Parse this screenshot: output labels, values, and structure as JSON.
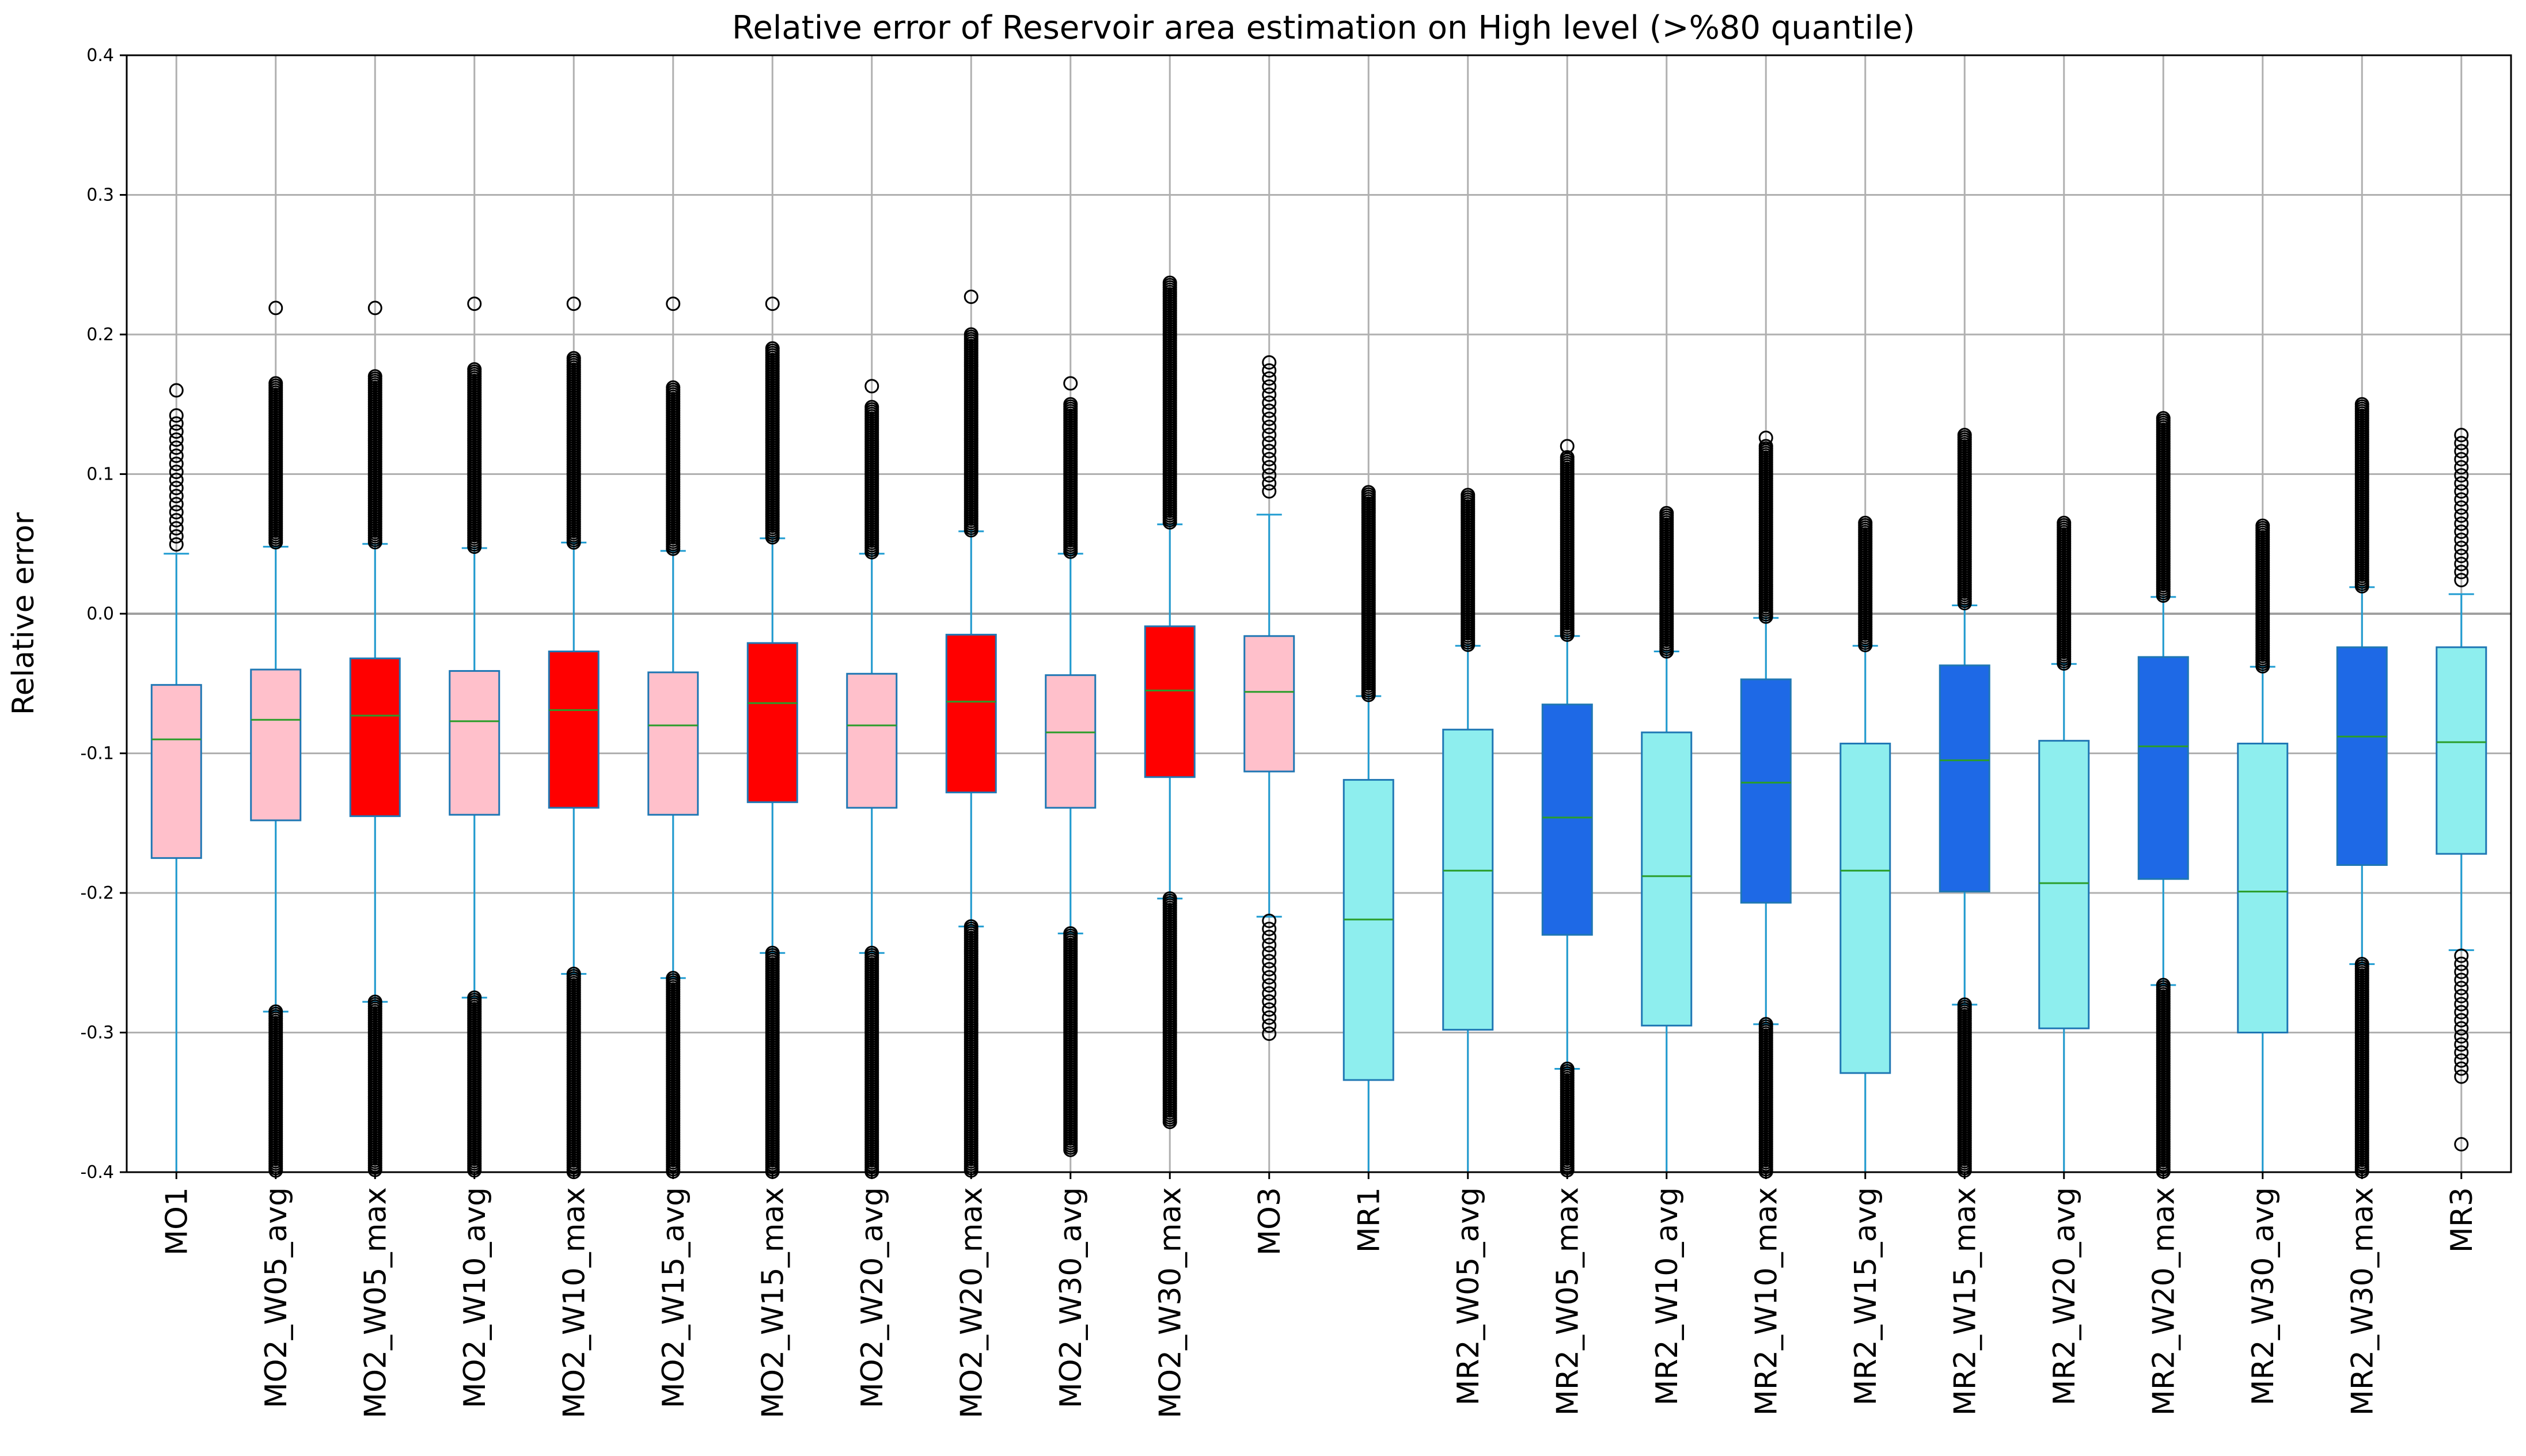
{
  "chart_data": {
    "type": "box",
    "title": "Relative error of Reservoir area estimation on High level (>%80 quantile)",
    "xlabel": "",
    "ylabel": "Relative error",
    "ylim": [
      -0.4,
      0.4
    ],
    "yticks": [
      "-0.4",
      "-0.3",
      "-0.2",
      "-0.1",
      "0.0",
      "0.1",
      "0.2",
      "0.3",
      "0.4"
    ],
    "grid": true,
    "colors": {
      "pink": "#ffc0cb",
      "red": "#ff0000",
      "cyan": "#8eeeee",
      "blue": "#1e69e6",
      "median": "#2a9d2a",
      "edge": "#1f77b4",
      "whisker": "#1f9bd1"
    },
    "series": [
      {
        "label": "MO1",
        "q1": -0.175,
        "median": -0.09,
        "q3": -0.051,
        "whislo": -0.4,
        "whishi": 0.043,
        "color": "pink",
        "upper_out": [
          0.045,
          0.142
        ],
        "lower_out": null,
        "top_out": 0.16,
        "bottom_out": null,
        "density": "sparse"
      },
      {
        "label": "MO2_W05_avg",
        "q1": -0.148,
        "median": -0.076,
        "q3": -0.04,
        "whislo": -0.285,
        "whishi": 0.048,
        "color": "pink",
        "upper_out": [
          0.05,
          0.165
        ],
        "lower_out": [
          -0.285,
          -0.4
        ],
        "top_out": 0.219,
        "bottom_out": null,
        "density": "dense"
      },
      {
        "label": "MO2_W05_max",
        "q1": -0.145,
        "median": -0.073,
        "q3": -0.032,
        "whislo": -0.278,
        "whishi": 0.05,
        "color": "red",
        "upper_out": [
          0.05,
          0.17
        ],
        "lower_out": [
          -0.278,
          -0.4
        ],
        "top_out": 0.219,
        "bottom_out": null,
        "density": "dense"
      },
      {
        "label": "MO2_W10_avg",
        "q1": -0.144,
        "median": -0.077,
        "q3": -0.041,
        "whislo": -0.275,
        "whishi": 0.047,
        "color": "pink",
        "upper_out": [
          0.047,
          0.175
        ],
        "lower_out": [
          -0.275,
          -0.4
        ],
        "top_out": 0.222,
        "bottom_out": null,
        "density": "dense"
      },
      {
        "label": "MO2_W10_max",
        "q1": -0.139,
        "median": -0.069,
        "q3": -0.027,
        "whislo": -0.258,
        "whishi": 0.051,
        "color": "red",
        "upper_out": [
          0.051,
          0.183
        ],
        "lower_out": [
          -0.258,
          -0.4
        ],
        "top_out": 0.222,
        "bottom_out": null,
        "density": "dense"
      },
      {
        "label": "MO2_W15_avg",
        "q1": -0.144,
        "median": -0.08,
        "q3": -0.042,
        "whislo": -0.261,
        "whishi": 0.045,
        "color": "pink",
        "upper_out": [
          0.045,
          0.162
        ],
        "lower_out": [
          -0.261,
          -0.4
        ],
        "top_out": 0.222,
        "bottom_out": null,
        "density": "dense"
      },
      {
        "label": "MO2_W15_max",
        "q1": -0.135,
        "median": -0.064,
        "q3": -0.021,
        "whislo": -0.243,
        "whishi": 0.054,
        "color": "red",
        "upper_out": [
          0.054,
          0.19
        ],
        "lower_out": [
          -0.243,
          -0.4
        ],
        "top_out": 0.222,
        "bottom_out": null,
        "density": "dense"
      },
      {
        "label": "MO2_W20_avg",
        "q1": -0.139,
        "median": -0.08,
        "q3": -0.043,
        "whislo": -0.243,
        "whishi": 0.043,
        "color": "pink",
        "upper_out": [
          0.043,
          0.148
        ],
        "lower_out": [
          -0.243,
          -0.4
        ],
        "top_out": 0.163,
        "bottom_out": null,
        "density": "dense"
      },
      {
        "label": "MO2_W20_max",
        "q1": -0.128,
        "median": -0.063,
        "q3": -0.015,
        "whislo": -0.224,
        "whishi": 0.059,
        "color": "red",
        "upper_out": [
          0.059,
          0.2
        ],
        "lower_out": [
          -0.224,
          -0.4
        ],
        "top_out": 0.227,
        "bottom_out": null,
        "density": "dense"
      },
      {
        "label": "MO2_W30_avg",
        "q1": -0.139,
        "median": -0.085,
        "q3": -0.044,
        "whislo": -0.229,
        "whishi": 0.043,
        "color": "pink",
        "upper_out": [
          0.043,
          0.15
        ],
        "lower_out": [
          -0.229,
          -0.385
        ],
        "top_out": 0.165,
        "bottom_out": null,
        "density": "dense"
      },
      {
        "label": "MO2_W30_max",
        "q1": -0.117,
        "median": -0.055,
        "q3": -0.009,
        "whislo": -0.204,
        "whishi": 0.064,
        "color": "red",
        "upper_out": [
          0.064,
          0.237
        ],
        "lower_out": [
          -0.204,
          -0.365
        ],
        "top_out": null,
        "bottom_out": null,
        "density": "dense"
      },
      {
        "label": "MO3",
        "q1": -0.113,
        "median": -0.056,
        "q3": -0.016,
        "whislo": -0.217,
        "whishi": 0.071,
        "color": "pink",
        "upper_out": [
          0.085,
          0.18
        ],
        "lower_out": [
          -0.22,
          -0.305
        ],
        "top_out": null,
        "bottom_out": null,
        "density": "sparse"
      },
      {
        "label": "MR1",
        "q1": -0.334,
        "median": -0.219,
        "q3": -0.119,
        "whislo": -0.4,
        "whishi": -0.059,
        "color": "cyan",
        "upper_out": [
          -0.059,
          0.087
        ],
        "lower_out": null,
        "top_out": null,
        "bottom_out": null,
        "density": "dense"
      },
      {
        "label": "MR2_W05_avg",
        "q1": -0.298,
        "median": -0.184,
        "q3": -0.083,
        "whislo": -0.4,
        "whishi": -0.023,
        "color": "cyan",
        "upper_out": [
          -0.023,
          0.085
        ],
        "lower_out": null,
        "top_out": null,
        "bottom_out": null,
        "density": "dense"
      },
      {
        "label": "MR2_W05_max",
        "q1": -0.23,
        "median": -0.146,
        "q3": -0.065,
        "whislo": -0.326,
        "whishi": -0.016,
        "color": "blue",
        "upper_out": [
          -0.016,
          0.112
        ],
        "lower_out": [
          -0.326,
          -0.4
        ],
        "top_out": 0.12,
        "bottom_out": null,
        "density": "dense"
      },
      {
        "label": "MR2_W10_avg",
        "q1": -0.295,
        "median": -0.188,
        "q3": -0.085,
        "whislo": -0.4,
        "whishi": -0.027,
        "color": "cyan",
        "upper_out": [
          -0.027,
          0.072
        ],
        "lower_out": null,
        "top_out": null,
        "bottom_out": null,
        "density": "dense"
      },
      {
        "label": "MR2_W10_max",
        "q1": -0.207,
        "median": -0.121,
        "q3": -0.047,
        "whislo": -0.294,
        "whishi": -0.003,
        "color": "blue",
        "upper_out": [
          -0.003,
          0.12
        ],
        "lower_out": [
          -0.294,
          -0.4
        ],
        "top_out": 0.126,
        "bottom_out": null,
        "density": "dense"
      },
      {
        "label": "MR2_W15_avg",
        "q1": -0.329,
        "median": -0.184,
        "q3": -0.093,
        "whislo": -0.4,
        "whishi": -0.023,
        "color": "cyan",
        "upper_out": [
          -0.023,
          0.065
        ],
        "lower_out": null,
        "top_out": null,
        "bottom_out": null,
        "density": "dense"
      },
      {
        "label": "MR2_W15_max",
        "q1": -0.199,
        "median": -0.105,
        "q3": -0.037,
        "whislo": -0.28,
        "whishi": 0.006,
        "color": "blue",
        "upper_out": [
          0.006,
          0.128
        ],
        "lower_out": [
          -0.28,
          -0.4
        ],
        "top_out": null,
        "bottom_out": null,
        "density": "dense"
      },
      {
        "label": "MR2_W20_avg",
        "q1": -0.297,
        "median": -0.193,
        "q3": -0.091,
        "whislo": -0.4,
        "whishi": -0.036,
        "color": "cyan",
        "upper_out": [
          -0.036,
          0.065
        ],
        "lower_out": null,
        "top_out": null,
        "bottom_out": null,
        "density": "dense"
      },
      {
        "label": "MR2_W20_max",
        "q1": -0.19,
        "median": -0.095,
        "q3": -0.031,
        "whislo": -0.266,
        "whishi": 0.012,
        "color": "blue",
        "upper_out": [
          0.012,
          0.14
        ],
        "lower_out": [
          -0.266,
          -0.4
        ],
        "top_out": null,
        "bottom_out": null,
        "density": "dense"
      },
      {
        "label": "MR2_W30_avg",
        "q1": -0.3,
        "median": -0.199,
        "q3": -0.093,
        "whislo": -0.4,
        "whishi": -0.038,
        "color": "cyan",
        "upper_out": [
          -0.038,
          0.063
        ],
        "lower_out": null,
        "top_out": null,
        "bottom_out": null,
        "density": "dense"
      },
      {
        "label": "MR2_W30_max",
        "q1": -0.18,
        "median": -0.088,
        "q3": -0.024,
        "whislo": -0.251,
        "whishi": 0.019,
        "color": "blue",
        "upper_out": [
          0.019,
          0.15
        ],
        "lower_out": [
          -0.251,
          -0.4
        ],
        "top_out": null,
        "bottom_out": null,
        "density": "dense"
      },
      {
        "label": "MR3",
        "q1": -0.172,
        "median": -0.092,
        "q3": -0.024,
        "whislo": -0.241,
        "whishi": 0.014,
        "color": "cyan",
        "upper_out": [
          0.02,
          0.128
        ],
        "lower_out": [
          -0.245,
          -0.335
        ],
        "top_out": null,
        "bottom_out": -0.38,
        "density": "sparse"
      }
    ]
  }
}
